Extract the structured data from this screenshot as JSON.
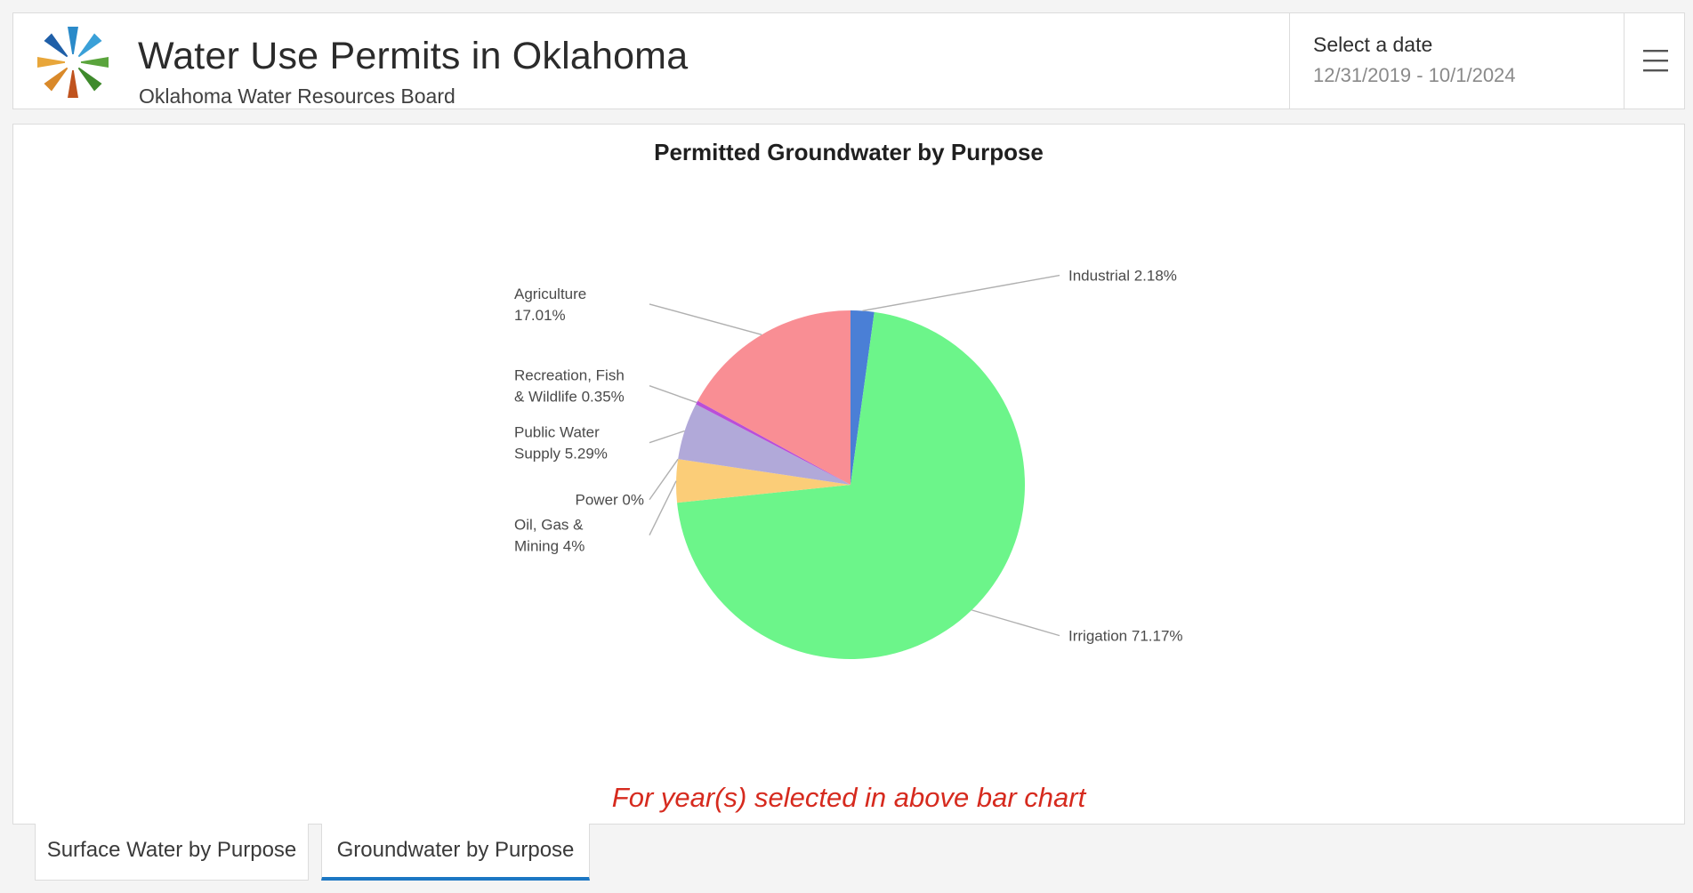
{
  "header": {
    "title": "Water Use Permits in Oklahoma",
    "subtitle": "Oklahoma Water Resources Board",
    "date_label": "Select a date",
    "date_range": "12/31/2019 - 10/1/2024",
    "menu_icon": "hamburger-menu-icon",
    "logo_icon": "owrb-star-logo"
  },
  "chart_data": {
    "type": "pie",
    "title": "Permitted Groundwater by Purpose",
    "slices": [
      {
        "name": "Industrial",
        "value": 2.18,
        "label_lines": [
          "Industrial 2.18%"
        ],
        "color": "#4a7fd6",
        "label_side": "right"
      },
      {
        "name": "Irrigation",
        "value": 71.17,
        "label_lines": [
          "Irrigation 71.17%"
        ],
        "color": "#6cf58a",
        "label_side": "right"
      },
      {
        "name": "Oil, Gas & Mining",
        "value": 4,
        "label_lines": [
          "Oil, Gas &",
          "Mining 4%"
        ],
        "color": "#fbcd78",
        "label_side": "left"
      },
      {
        "name": "Power",
        "value": 0,
        "label_lines": [
          "Power 0%"
        ],
        "color": "#e0e0e0",
        "label_side": "left"
      },
      {
        "name": "Public Water Supply",
        "value": 5.29,
        "label_lines": [
          "Public Water",
          "Supply 5.29%"
        ],
        "color": "#b1a9d9",
        "label_side": "left"
      },
      {
        "name": "Recreation, Fish & Wildlife",
        "value": 0.35,
        "label_lines": [
          "Recreation, Fish",
          "& Wildlife 0.35%"
        ],
        "color": "#b94fd8",
        "label_side": "left"
      },
      {
        "name": "Agriculture",
        "value": 17.01,
        "label_lines": [
          "Agriculture",
          "17.01%"
        ],
        "color": "#f98e94",
        "label_side": "left"
      }
    ]
  },
  "note": "For year(s) selected in above bar chart",
  "tabs": [
    {
      "label": "Surface Water by Purpose",
      "active": false
    },
    {
      "label": "Groundwater by Purpose",
      "active": true
    }
  ]
}
